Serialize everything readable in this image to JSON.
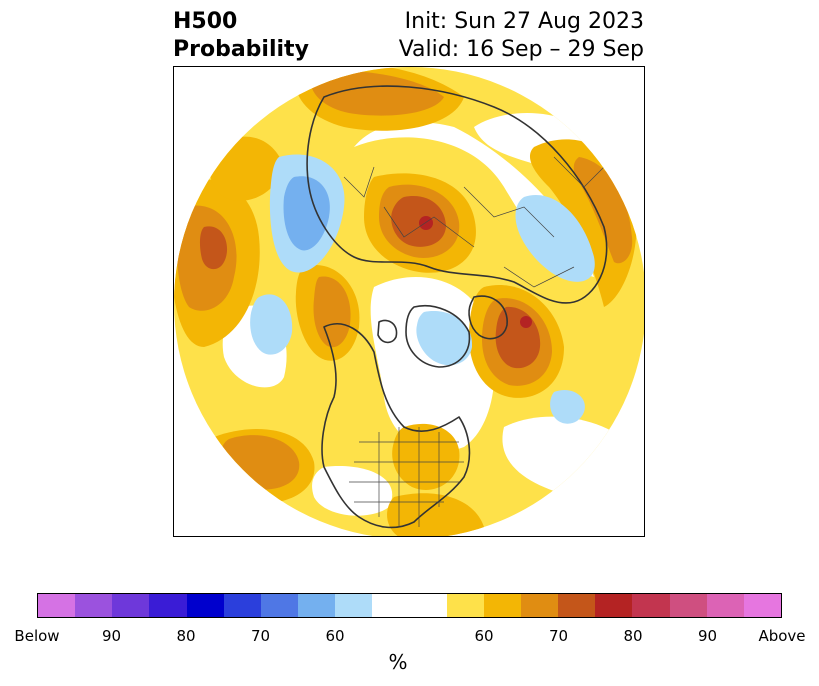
{
  "header": {
    "left_line1": "H500",
    "left_line2": "Probability",
    "right_line1": "Init: Sun 27 Aug 2023",
    "right_line2": "Valid: 16 Sep – 29 Sep"
  },
  "map": {
    "projection": "north-polar-stereographic",
    "field": "500 hPa height anomaly probability",
    "colors": {
      "above_60": "#fee14a",
      "above_65": "#f3b605",
      "above_70": "#e08d12",
      "above_75": "#c4561a",
      "above_80": "#b42323",
      "below_60": "#aedcf9",
      "below_65": "#74b0ef",
      "coastline": "#333333",
      "borders": "#444444"
    }
  },
  "colorbar": {
    "colors": [
      "#d572e4",
      "#9b52de",
      "#6e38da",
      "#3a1cd6",
      "#0000cd",
      "#2b3fdc",
      "#4f77e5",
      "#74b0ef",
      "#aedcf9",
      "#ffffff",
      "#fee14a",
      "#f3b605",
      "#e08d12",
      "#c4561a",
      "#b42323",
      "#c2354f",
      "#cf4f80",
      "#dc63b5",
      "#e676e0"
    ],
    "ticks": [
      "Below",
      "90",
      "80",
      "70",
      "60",
      "60",
      "70",
      "80",
      "90",
      "Above"
    ],
    "unit_label": "%"
  }
}
